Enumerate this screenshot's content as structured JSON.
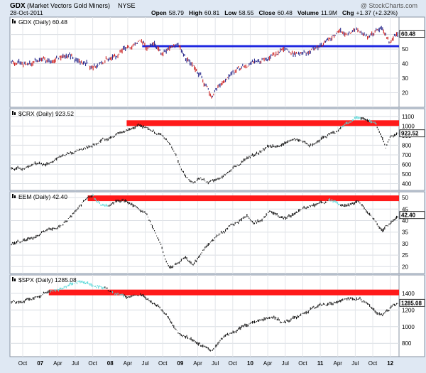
{
  "header": {
    "symbol": "GDX",
    "name": "(Market Vectors Gold Miners)",
    "exchange": "NYSE",
    "watermark": "@ StockCharts.com",
    "date": "28-Oct-2011",
    "quote": [
      {
        "label": "Open",
        "value": "58.79"
      },
      {
        "label": "High",
        "value": "60.81"
      },
      {
        "label": "Low",
        "value": "58.55"
      },
      {
        "label": "Close",
        "value": "60.48"
      },
      {
        "label": "Volume",
        "value": "11.9M"
      },
      {
        "label": "Chg",
        "value": "+1.37 (+2.32%)"
      }
    ]
  },
  "chart_data": [
    {
      "type": "line",
      "title": "GDX (Daily) 60.48",
      "ylim": [
        10,
        72
      ],
      "yticks": [
        20,
        30,
        40,
        50,
        60
      ],
      "ytick_labels": [
        "20",
        "30",
        "40",
        "50",
        "60"
      ],
      "last_value_label": "60.48",
      "series_color": "#2a2a8c",
      "line_color": "#1f28e0",
      "hline": {
        "y": 52,
        "x_start": 0.34
      },
      "anchors": [
        [
          0,
          41
        ],
        [
          0.04,
          40
        ],
        [
          0.08,
          43
        ],
        [
          0.11,
          41
        ],
        [
          0.15,
          46
        ],
        [
          0.18,
          41
        ],
        [
          0.21,
          38
        ],
        [
          0.24,
          42
        ],
        [
          0.27,
          45
        ],
        [
          0.29,
          49
        ],
        [
          0.31,
          52
        ],
        [
          0.33,
          56
        ],
        [
          0.35,
          51
        ],
        [
          0.37,
          53
        ],
        [
          0.39,
          47
        ],
        [
          0.41,
          50
        ],
        [
          0.43,
          53
        ],
        [
          0.45,
          45
        ],
        [
          0.47,
          38
        ],
        [
          0.49,
          33
        ],
        [
          0.5,
          26
        ],
        [
          0.51,
          21
        ],
        [
          0.52,
          18
        ],
        [
          0.53,
          22
        ],
        [
          0.55,
          28
        ],
        [
          0.57,
          34
        ],
        [
          0.59,
          36
        ],
        [
          0.61,
          38
        ],
        [
          0.63,
          43
        ],
        [
          0.65,
          41
        ],
        [
          0.67,
          45
        ],
        [
          0.69,
          48
        ],
        [
          0.71,
          50
        ],
        [
          0.73,
          46
        ],
        [
          0.75,
          48
        ],
        [
          0.77,
          47
        ],
        [
          0.79,
          52
        ],
        [
          0.81,
          55
        ],
        [
          0.83,
          58
        ],
        [
          0.85,
          62
        ],
        [
          0.87,
          60
        ],
        [
          0.89,
          63
        ],
        [
          0.91,
          61
        ],
        [
          0.93,
          58
        ],
        [
          0.95,
          64
        ],
        [
          0.96,
          66
        ],
        [
          0.97,
          59
        ],
        [
          0.98,
          55
        ],
        [
          1,
          60.5
        ]
      ],
      "highlights": []
    },
    {
      "type": "line",
      "title": "$CRX (Daily) 923.52",
      "ylim": [
        330,
        1180
      ],
      "yticks": [
        400,
        500,
        600,
        700,
        800,
        900,
        1000,
        1100
      ],
      "ytick_labels": [
        "400",
        "500",
        "600",
        "700",
        "800",
        "900",
        "1000",
        "1100"
      ],
      "last_value_label": "923.52",
      "series_color": "#111111",
      "line_color": "#ff1a1a",
      "hline": {
        "y": 1030,
        "x_start": 0.3
      },
      "anchors": [
        [
          0,
          570
        ],
        [
          0.03,
          560
        ],
        [
          0.06,
          610
        ],
        [
          0.09,
          600
        ],
        [
          0.12,
          670
        ],
        [
          0.15,
          720
        ],
        [
          0.18,
          760
        ],
        [
          0.21,
          800
        ],
        [
          0.24,
          860
        ],
        [
          0.27,
          910
        ],
        [
          0.29,
          940
        ],
        [
          0.31,
          980
        ],
        [
          0.33,
          1010
        ],
        [
          0.35,
          980
        ],
        [
          0.37,
          940
        ],
        [
          0.39,
          900
        ],
        [
          0.41,
          820
        ],
        [
          0.43,
          650
        ],
        [
          0.45,
          470
        ],
        [
          0.47,
          420
        ],
        [
          0.49,
          450
        ],
        [
          0.51,
          410
        ],
        [
          0.53,
          440
        ],
        [
          0.55,
          480
        ],
        [
          0.57,
          540
        ],
        [
          0.59,
          600
        ],
        [
          0.61,
          660
        ],
        [
          0.63,
          700
        ],
        [
          0.65,
          750
        ],
        [
          0.67,
          800
        ],
        [
          0.69,
          770
        ],
        [
          0.71,
          820
        ],
        [
          0.73,
          860
        ],
        [
          0.75,
          840
        ],
        [
          0.77,
          800
        ],
        [
          0.79,
          830
        ],
        [
          0.81,
          880
        ],
        [
          0.83,
          930
        ],
        [
          0.85,
          960
        ],
        [
          0.87,
          1030
        ],
        [
          0.89,
          1080
        ],
        [
          0.9,
          1090
        ],
        [
          0.92,
          1060
        ],
        [
          0.94,
          1050
        ],
        [
          0.95,
          960
        ],
        [
          0.96,
          870
        ],
        [
          0.97,
          760
        ],
        [
          0.98,
          880
        ],
        [
          1,
          923.52
        ]
      ],
      "highlights": [
        [
          0.855,
          0.905
        ],
        [
          0.925,
          0.945
        ]
      ]
    },
    {
      "type": "line",
      "title": "EEM (Daily) 42.40",
      "ylim": [
        17,
        52.5
      ],
      "yticks": [
        20,
        25,
        30,
        35,
        40,
        45,
        50
      ],
      "ytick_labels": [
        "20",
        "25",
        "30",
        "35",
        "40",
        "45",
        "50"
      ],
      "last_value_label": "42.40",
      "series_color": "#111111",
      "line_color": "#ff1a1a",
      "hline": {
        "y": 49.7,
        "x_start": 0.2
      },
      "anchors": [
        [
          0,
          30
        ],
        [
          0.03,
          31
        ],
        [
          0.06,
          33
        ],
        [
          0.09,
          36
        ],
        [
          0.12,
          37
        ],
        [
          0.15,
          41
        ],
        [
          0.17,
          45
        ],
        [
          0.19,
          49
        ],
        [
          0.21,
          51
        ],
        [
          0.23,
          47
        ],
        [
          0.25,
          46
        ],
        [
          0.27,
          48
        ],
        [
          0.29,
          49
        ],
        [
          0.31,
          47
        ],
        [
          0.33,
          45
        ],
        [
          0.35,
          43
        ],
        [
          0.37,
          36
        ],
        [
          0.39,
          28
        ],
        [
          0.4,
          22
        ],
        [
          0.41,
          19
        ],
        [
          0.43,
          22
        ],
        [
          0.45,
          24
        ],
        [
          0.47,
          21
        ],
        [
          0.49,
          25
        ],
        [
          0.51,
          30
        ],
        [
          0.53,
          33
        ],
        [
          0.55,
          35
        ],
        [
          0.57,
          38
        ],
        [
          0.59,
          40
        ],
        [
          0.61,
          42
        ],
        [
          0.63,
          39
        ],
        [
          0.65,
          41
        ],
        [
          0.67,
          44
        ],
        [
          0.69,
          42
        ],
        [
          0.71,
          41
        ],
        [
          0.73,
          43
        ],
        [
          0.75,
          45
        ],
        [
          0.77,
          46
        ],
        [
          0.79,
          47
        ],
        [
          0.81,
          48
        ],
        [
          0.82,
          49
        ],
        [
          0.84,
          48
        ],
        [
          0.86,
          46
        ],
        [
          0.88,
          47
        ],
        [
          0.9,
          48
        ],
        [
          0.92,
          44
        ],
        [
          0.94,
          40
        ],
        [
          0.96,
          36
        ],
        [
          0.98,
          39
        ],
        [
          1,
          42.4
        ]
      ],
      "highlights": [
        [
          0.21,
          0.25
        ],
        [
          0.82,
          0.85
        ]
      ]
    },
    {
      "type": "line",
      "title": "$SPX (Daily) 1285.08",
      "ylim": [
        640,
        1620
      ],
      "yticks": [
        800,
        1000,
        1200,
        1400
      ],
      "ytick_labels": [
        "800",
        "1000",
        "1200",
        "1400"
      ],
      "last_value_label": "1285.08",
      "series_color": "#111111",
      "line_color": "#ff1a1a",
      "hline": {
        "y": 1410,
        "x_start": 0.1
      },
      "anchors": [
        [
          0,
          1290
        ],
        [
          0.03,
          1310
        ],
        [
          0.06,
          1350
        ],
        [
          0.09,
          1400
        ],
        [
          0.12,
          1440
        ],
        [
          0.15,
          1500
        ],
        [
          0.18,
          1540
        ],
        [
          0.2,
          1520
        ],
        [
          0.22,
          1480
        ],
        [
          0.24,
          1460
        ],
        [
          0.26,
          1420
        ],
        [
          0.28,
          1380
        ],
        [
          0.3,
          1350
        ],
        [
          0.32,
          1390
        ],
        [
          0.34,
          1380
        ],
        [
          0.36,
          1300
        ],
        [
          0.38,
          1250
        ],
        [
          0.4,
          1150
        ],
        [
          0.42,
          1000
        ],
        [
          0.44,
          900
        ],
        [
          0.46,
          870
        ],
        [
          0.48,
          810
        ],
        [
          0.5,
          760
        ],
        [
          0.52,
          700
        ],
        [
          0.54,
          820
        ],
        [
          0.56,
          900
        ],
        [
          0.58,
          950
        ],
        [
          0.6,
          1000
        ],
        [
          0.62,
          1050
        ],
        [
          0.64,
          1080
        ],
        [
          0.66,
          1100
        ],
        [
          0.68,
          1120
        ],
        [
          0.7,
          1060
        ],
        [
          0.72,
          1080
        ],
        [
          0.74,
          1120
        ],
        [
          0.76,
          1170
        ],
        [
          0.78,
          1220
        ],
        [
          0.8,
          1260
        ],
        [
          0.82,
          1280
        ],
        [
          0.84,
          1300
        ],
        [
          0.86,
          1320
        ],
        [
          0.88,
          1340
        ],
        [
          0.9,
          1330
        ],
        [
          0.92,
          1290
        ],
        [
          0.94,
          1200
        ],
        [
          0.96,
          1130
        ],
        [
          0.98,
          1220
        ],
        [
          1,
          1285.08
        ]
      ],
      "highlights": [
        [
          0.1,
          0.24
        ],
        [
          0.26,
          0.29
        ]
      ]
    }
  ],
  "x_axis_labels": [
    "Oct",
    "07",
    "Apr",
    "Jul",
    "Oct",
    "08",
    "Apr",
    "Jul",
    "Oct",
    "09",
    "Apr",
    "Jul",
    "Oct",
    "10",
    "Apr",
    "Jul",
    "Oct",
    "11",
    "Apr",
    "Jul",
    "Oct",
    "12"
  ],
  "x_axis_bold": [
    "07",
    "08",
    "09",
    "10",
    "11",
    "12"
  ],
  "highlight_color": "#58d8d8"
}
